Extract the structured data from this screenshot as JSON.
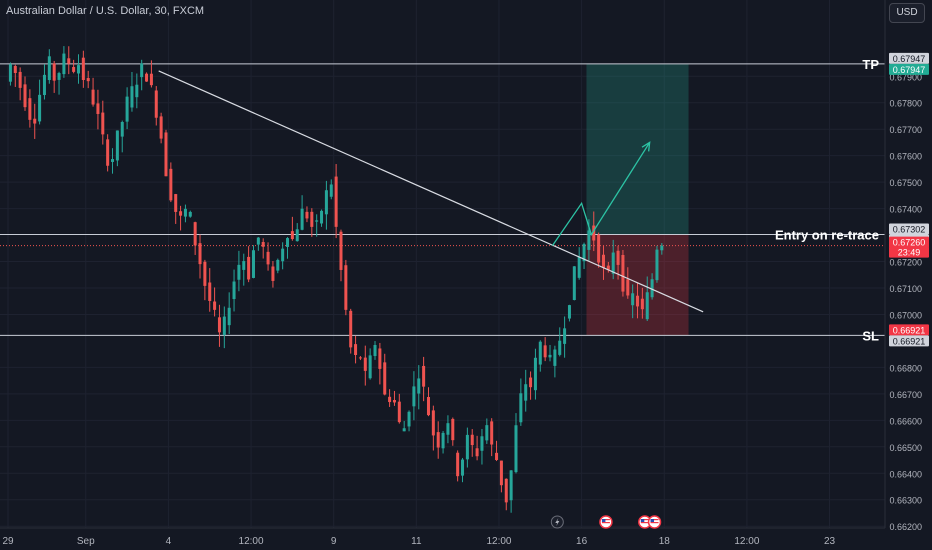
{
  "header": {
    "title": "Australian Dollar / U.S. Dollar, 30, FXCM"
  },
  "currency_button": {
    "label": "USD"
  },
  "chart_data": {
    "type": "candlestick",
    "ylim": [
      0.662,
      0.68
    ],
    "y_ticks": [
      "0.67900",
      "0.67800",
      "0.67700",
      "0.67600",
      "0.67500",
      "0.67400",
      "0.67200",
      "0.67100",
      "0.67000",
      "0.66800",
      "0.66700",
      "0.66600",
      "0.66500",
      "0.66400",
      "0.66300",
      "0.66200"
    ],
    "y_tick_values": [
      0.679,
      0.678,
      0.677,
      0.676,
      0.675,
      0.674,
      0.672,
      0.671,
      0.67,
      0.668,
      0.667,
      0.666,
      0.665,
      0.664,
      0.663,
      0.662
    ],
    "x_ticks": [
      "29",
      "Sep",
      "4",
      "12:00",
      "9",
      "11",
      "12:00",
      "16",
      "18",
      "12:00",
      "23"
    ],
    "x_tick_slots": [
      0,
      16,
      33,
      50,
      67,
      84,
      101,
      118,
      135,
      152,
      169
    ],
    "slot_count": 180,
    "candle_count": 135,
    "price_series": [
      0.6788,
      0.6795,
      0.679,
      0.6784,
      0.6778,
      0.6772,
      0.6782,
      0.679,
      0.6795,
      0.6788,
      0.6794,
      0.6798,
      0.6792,
      0.6796,
      0.679,
      0.6786,
      0.678,
      0.6772,
      0.6762,
      0.6756,
      0.6765,
      0.6772,
      0.678,
      0.6785,
      0.679,
      0.6794,
      0.6788,
      0.678,
      0.677,
      0.6755,
      0.6745,
      0.6738,
      0.6735,
      0.6742,
      0.673,
      0.6722,
      0.6712,
      0.6705,
      0.6698,
      0.669,
      0.67,
      0.671,
      0.6718,
      0.6722,
      0.6715,
      0.6725,
      0.673,
      0.6722,
      0.6712,
      0.6718,
      0.6725,
      0.6732,
      0.6728,
      0.6735,
      0.674,
      0.6736,
      0.673,
      0.6738,
      0.6745,
      0.675,
      0.673,
      0.6712,
      0.6695,
      0.668,
      0.6688,
      0.6675,
      0.6682,
      0.669,
      0.6678,
      0.6665,
      0.6672,
      0.666,
      0.6655,
      0.6665,
      0.6672,
      0.668,
      0.6668,
      0.666,
      0.665,
      0.6655,
      0.6662,
      0.665,
      0.664,
      0.6648,
      0.6655,
      0.6645,
      0.6652,
      0.666,
      0.665,
      0.6645,
      0.6635,
      0.6628,
      0.665,
      0.6665,
      0.6675,
      0.6672,
      0.6682,
      0.669,
      0.6685,
      0.668,
      0.6688,
      0.6695,
      0.6705,
      0.6715,
      0.6722,
      0.6728,
      0.6733,
      0.6726,
      0.6718,
      0.6712,
      0.6725,
      0.672,
      0.671,
      0.6702,
      0.671,
      0.6698,
      0.6705,
      0.6712,
      0.6726
    ],
    "trendline": {
      "start": {
        "slot": 31,
        "price": 0.6792
      },
      "end": {
        "slot": 143,
        "price": 0.6701
      }
    },
    "projection_path": [
      {
        "slot": 112,
        "price": 0.6726
      },
      {
        "slot": 118,
        "price": 0.6742
      },
      {
        "slot": 120,
        "price": 0.67302
      },
      {
        "slot": 132,
        "price": 0.6765
      }
    ],
    "position_box": {
      "slot_start": 119,
      "slot_end": 140,
      "tp": 0.67947,
      "entry": 0.67302,
      "sl": 0.66921
    },
    "levels": [
      {
        "name": "TP",
        "price": 0.67947,
        "label": "TP"
      },
      {
        "name": "entry",
        "price": 0.67302,
        "label": "Entry on re-trace"
      },
      {
        "name": "SL",
        "price": 0.66921,
        "label": "SL"
      }
    ],
    "price_labels": [
      {
        "text": "0.67947",
        "price": 0.67947,
        "kind": "plain"
      },
      {
        "text": "0.67947",
        "price": 0.67947,
        "kind": "green"
      },
      {
        "text": "0.67302",
        "price": 0.67302,
        "kind": "plain"
      },
      {
        "text": "0.67302",
        "price": 0.67302,
        "kind": "plain"
      },
      {
        "text": "0.67260",
        "price": 0.6726,
        "kind": "red"
      },
      {
        "text": "23:49",
        "price": 0.6726,
        "kind": "red-sub"
      },
      {
        "text": "0.66921",
        "price": 0.66921,
        "kind": "red"
      },
      {
        "text": "0.66921",
        "price": 0.66921,
        "kind": "plain"
      }
    ],
    "last_price": 0.6726,
    "event_icons": [
      {
        "slot": 113,
        "icon": "lightning-icon"
      },
      {
        "slot": 123,
        "icon": "us-flag-icon"
      },
      {
        "slot": 131,
        "icon": "us-flag-icon"
      },
      {
        "slot": 133,
        "icon": "us-flag-icon"
      }
    ],
    "colors": {
      "background": "#141823",
      "up": "#26a69a",
      "down": "#ef5350",
      "grid": "#1e2230",
      "level_line": "#c8ccd6",
      "trendline": "#d8dbe2",
      "projection": "#2cc3a4",
      "tp_zone": "rgba(34,171,148,0.25)",
      "sl_zone": "rgba(242,54,69,0.25)"
    }
  }
}
